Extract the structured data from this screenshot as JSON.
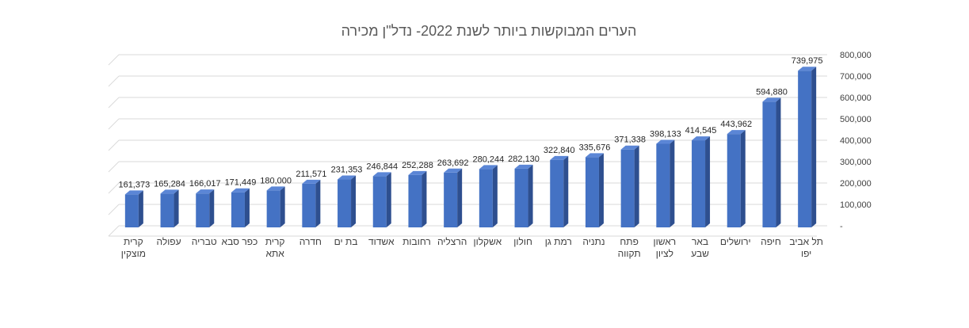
{
  "chart_data": {
    "type": "bar",
    "title": "הערים המבוקשות ביותר לשנת 2022- נדל\"ן מכירה",
    "xlabel": "",
    "ylabel": "",
    "ylim": [
      0,
      800000
    ],
    "y_ticks": [
      {
        "value": 0,
        "label": "-"
      },
      {
        "value": 100000,
        "label": "100,000"
      },
      {
        "value": 200000,
        "label": "200,000"
      },
      {
        "value": 300000,
        "label": "300,000"
      },
      {
        "value": 400000,
        "label": "400,000"
      },
      {
        "value": 500000,
        "label": "500,000"
      },
      {
        "value": 600000,
        "label": "600,000"
      },
      {
        "value": 700000,
        "label": "700,000"
      },
      {
        "value": 800000,
        "label": "800,000"
      }
    ],
    "y_axis_side": "right",
    "grid": true,
    "bar_style": "3d-column",
    "bar_color": "#4472C4",
    "categories": [
      [
        "קרית",
        "מוצקין"
      ],
      [
        "עפולה"
      ],
      [
        "טבריה"
      ],
      [
        "כפר סבא"
      ],
      [
        "קרית",
        "אתא"
      ],
      [
        "חדרה"
      ],
      [
        "בת ים"
      ],
      [
        "אשדוד"
      ],
      [
        "רחובות"
      ],
      [
        "הרצליה"
      ],
      [
        "אשקלון"
      ],
      [
        "חולון"
      ],
      [
        "רמת גן"
      ],
      [
        "נתניה"
      ],
      [
        "פתח",
        "תקווה"
      ],
      [
        "ראשון",
        "לציון"
      ],
      [
        "באר",
        "שבע"
      ],
      [
        "ירושלים"
      ],
      [
        "חיפה"
      ],
      [
        "תל אביב",
        "יפו"
      ]
    ],
    "values": [
      161373,
      165284,
      166017,
      171449,
      180000,
      211571,
      231353,
      246844,
      252288,
      263692,
      280244,
      282130,
      322840,
      335676,
      371338,
      398133,
      414545,
      443962,
      594880,
      739975
    ],
    "value_labels": [
      "161,373",
      "165,284",
      "166,017",
      "171,449",
      "180,000",
      "211,571",
      "231,353",
      "246,844",
      "252,288",
      "263,692",
      "280,244",
      "282,130",
      "322,840",
      "335,676",
      "371,338",
      "398,133",
      "414,545",
      "443,962",
      "594,880",
      "739,975"
    ]
  }
}
